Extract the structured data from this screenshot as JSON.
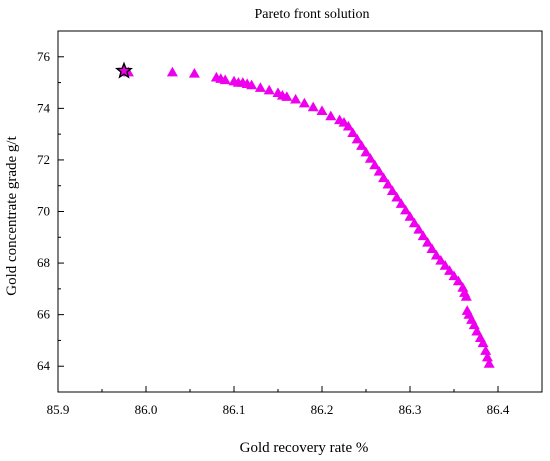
{
  "chart_data": {
    "type": "scatter",
    "title": "Pareto front solution",
    "xlabel": "Gold recovery rate %",
    "ylabel": "Gold concentrate grade  g/t",
    "xlim": [
      85.9,
      86.45
    ],
    "ylim": [
      63,
      77
    ],
    "x_ticks": [
      "85.9",
      "86.0",
      "86.1",
      "86.2",
      "86.3",
      "86.4"
    ],
    "y_ticks": [
      "64",
      "66",
      "68",
      "70",
      "72",
      "74",
      "76"
    ],
    "grid": false,
    "legend": "none",
    "colors": {
      "series": "#ee00ee",
      "star": "#000000",
      "axis": "#000000"
    },
    "series": [
      {
        "marker": "triangle",
        "x": [
          85.98,
          86.03,
          86.055,
          86.08,
          86.085,
          86.09,
          86.1,
          86.105,
          86.11,
          86.115,
          86.12,
          86.13,
          86.14,
          86.15,
          86.155,
          86.16,
          86.17,
          86.18,
          86.19,
          86.2,
          86.21,
          86.22,
          86.225,
          86.23,
          86.235,
          86.24,
          86.245,
          86.25,
          86.255,
          86.26,
          86.265,
          86.27,
          86.275,
          86.28,
          86.285,
          86.29,
          86.295,
          86.3,
          86.305,
          86.31,
          86.315,
          86.32,
          86.325,
          86.33,
          86.335,
          86.34,
          86.345,
          86.35,
          86.355,
          86.36,
          86.362,
          86.364,
          86.365,
          86.367,
          86.37,
          86.373,
          86.376,
          86.38,
          86.383,
          86.386,
          86.388,
          86.39
        ],
        "y": [
          75.4,
          75.4,
          75.35,
          75.2,
          75.15,
          75.1,
          75.05,
          75.0,
          75.0,
          74.95,
          74.9,
          74.8,
          74.7,
          74.6,
          74.5,
          74.45,
          74.35,
          74.2,
          74.05,
          73.9,
          73.7,
          73.55,
          73.45,
          73.3,
          73.05,
          72.8,
          72.55,
          72.3,
          72.05,
          71.8,
          71.55,
          71.3,
          71.05,
          70.8,
          70.55,
          70.3,
          70.05,
          69.8,
          69.55,
          69.3,
          69.05,
          68.8,
          68.55,
          68.3,
          68.1,
          67.9,
          67.7,
          67.5,
          67.3,
          67.05,
          66.85,
          66.7,
          66.15,
          66.0,
          65.8,
          65.6,
          65.35,
          65.1,
          64.9,
          64.6,
          64.35,
          64.1
        ]
      },
      {
        "marker": "star",
        "x": [
          85.975
        ],
        "y": [
          75.45
        ]
      }
    ]
  }
}
